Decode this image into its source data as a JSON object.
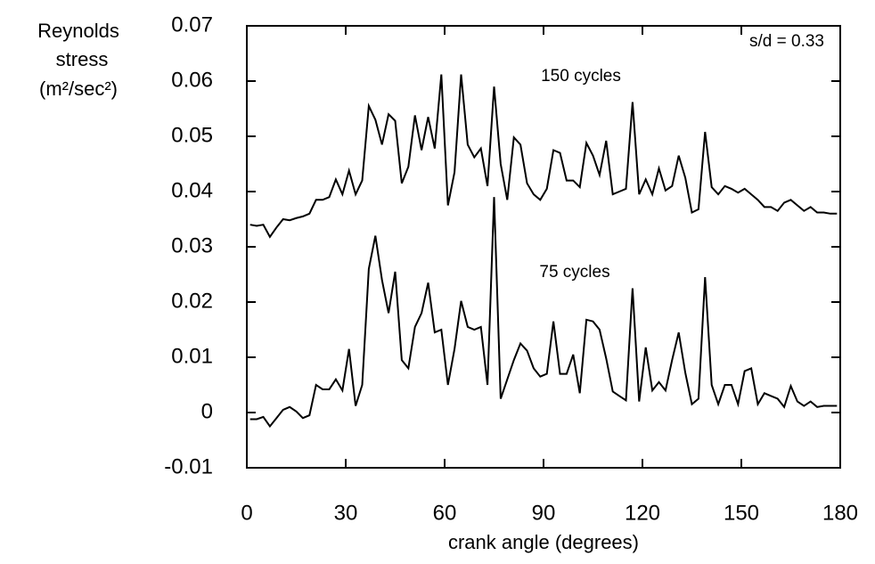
{
  "chart_data": {
    "type": "line",
    "ylabel_lines": [
      "Reynolds",
      "stress",
      "(m²/sec²)"
    ],
    "xlabel": "crank angle (degrees)",
    "annotations": {
      "parameter": "s/d = 0.33",
      "upper": "150 cycles",
      "lower": "75 cycles"
    },
    "x": [
      1,
      3,
      5,
      7,
      9,
      11,
      13,
      15,
      17,
      19,
      21,
      23,
      25,
      27,
      29,
      31,
      33,
      35,
      37,
      39,
      41,
      43,
      45,
      47,
      49,
      51,
      53,
      55,
      57,
      59,
      61,
      63,
      65,
      67,
      69,
      71,
      73,
      75,
      77,
      79,
      81,
      83,
      85,
      87,
      89,
      91,
      93,
      95,
      97,
      99,
      101,
      103,
      105,
      107,
      109,
      111,
      113,
      115,
      117,
      119,
      121,
      123,
      125,
      127,
      129,
      131,
      133,
      135,
      137,
      139,
      141,
      143,
      145,
      147,
      149,
      151,
      153,
      155,
      157,
      159,
      161,
      163,
      165,
      167,
      169,
      171,
      173,
      175,
      177,
      179
    ],
    "series": [
      {
        "color": "#000000",
        "values": [
          0.034,
          0.0338,
          0.034,
          0.0318,
          0.0335,
          0.035,
          0.0348,
          0.0352,
          0.0355,
          0.036,
          0.0385,
          0.0385,
          0.039,
          0.0422,
          0.0395,
          0.0438,
          0.0395,
          0.042,
          0.0555,
          0.053,
          0.0485,
          0.054,
          0.0528,
          0.0415,
          0.0445,
          0.0538,
          0.0475,
          0.0535,
          0.0478,
          0.0612,
          0.0375,
          0.0435,
          0.0612,
          0.0485,
          0.0462,
          0.0478,
          0.041,
          0.059,
          0.045,
          0.0385,
          0.0498,
          0.0485,
          0.0415,
          0.0395,
          0.0385,
          0.0405,
          0.0475,
          0.047,
          0.042,
          0.042,
          0.0408,
          0.0488,
          0.0465,
          0.043,
          0.0492,
          0.0395,
          0.04,
          0.0405,
          0.0562,
          0.0395,
          0.0422,
          0.0395,
          0.0442,
          0.0402,
          0.041,
          0.0465,
          0.0425,
          0.0362,
          0.0368,
          0.0508,
          0.0408,
          0.0395,
          0.041,
          0.0405,
          0.0398,
          0.0405,
          0.0395,
          0.0385,
          0.0372,
          0.0372,
          0.0365,
          0.038,
          0.0385,
          0.0375,
          0.0365,
          0.0372,
          0.0362,
          0.0362,
          0.036,
          0.036
        ]
      },
      {
        "color": "#000000",
        "values": [
          -0.0012,
          -0.0012,
          -0.0008,
          -0.0025,
          -0.001,
          0.0005,
          0.001,
          0.0002,
          -0.001,
          -0.0005,
          0.005,
          0.0042,
          0.0042,
          0.006,
          0.004,
          0.0115,
          0.0012,
          0.005,
          0.026,
          0.032,
          0.024,
          0.018,
          0.0255,
          0.0095,
          0.008,
          0.0155,
          0.018,
          0.0235,
          0.0145,
          0.015,
          0.005,
          0.0115,
          0.0202,
          0.0155,
          0.015,
          0.0155,
          0.005,
          0.039,
          0.0025,
          0.006,
          0.0095,
          0.0125,
          0.0112,
          0.008,
          0.0065,
          0.007,
          0.0165,
          0.007,
          0.007,
          0.0105,
          0.0035,
          0.0168,
          0.0165,
          0.015,
          0.0098,
          0.0038,
          0.003,
          0.0022,
          0.0225,
          0.002,
          0.0118,
          0.004,
          0.0055,
          0.004,
          0.0095,
          0.0145,
          0.0072,
          0.0015,
          0.0025,
          0.0245,
          0.005,
          0.0015,
          0.005,
          0.005,
          0.0015,
          0.0075,
          0.008,
          0.0015,
          0.0035,
          0.003,
          0.0025,
          0.001,
          0.0048,
          0.002,
          0.0012,
          0.002,
          0.001,
          0.0012,
          0.0012,
          0.0012
        ]
      }
    ],
    "xlim": [
      0,
      180
    ],
    "xticks": [
      0,
      30,
      60,
      90,
      120,
      150,
      180
    ],
    "ylim": [
      -0.01,
      0.07
    ],
    "yticks": [
      -0.01,
      0,
      0.01,
      0.02,
      0.03,
      0.04,
      0.05,
      0.06,
      0.07
    ],
    "grid": false
  }
}
